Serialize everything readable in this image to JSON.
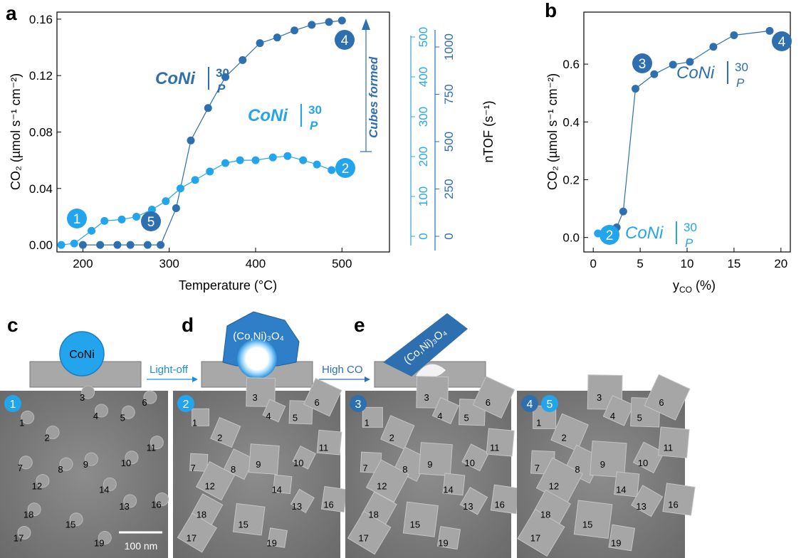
{
  "panels": {
    "a": "a",
    "b": "b",
    "c": "c",
    "d": "d",
    "e": "e"
  },
  "chart_a": {
    "xlabel": "Temperature (°C)",
    "ylabel": "CO₂ (µmol s⁻¹ cm⁻²)",
    "y2label": "nTOF (s⁻¹)",
    "xticks": [
      "200",
      "300",
      "400",
      "500"
    ],
    "yticks": [
      "0.00",
      "0.04",
      "0.08",
      "0.12",
      "0.16"
    ],
    "y2ticks_light": [
      "0",
      "100",
      "200",
      "300",
      "400",
      "500"
    ],
    "y2ticks_dark": [
      "0",
      "250",
      "500",
      "750",
      "1000"
    ],
    "annotation": "Cubes formed",
    "label_dark": "CoNi",
    "label_light": "CoNi",
    "sup": "30",
    "sub": "P",
    "markers": [
      "1",
      "5",
      "2",
      "4"
    ]
  },
  "chart_b": {
    "xlabel": "y",
    "xlabel_sub": "CO",
    "xlabel_unit": " (%)",
    "ylabel": "CO₂ (µmol s⁻¹ cm⁻²)",
    "xticks": [
      "0",
      "5",
      "10",
      "15",
      "20"
    ],
    "yticks": [
      "0.0",
      "0.2",
      "0.4",
      "0.6"
    ],
    "label": "CoNi",
    "sup": "30",
    "sub": "P",
    "markers": [
      "3",
      "4",
      "2"
    ]
  },
  "chart_data": [
    {
      "type": "line",
      "series": [
        {
          "x": [
            200,
            220,
            240,
            255,
            275,
            290,
            308,
            325,
            345,
            365,
            385,
            405,
            425,
            445,
            465,
            485,
            500
          ],
          "y": [
            0,
            0,
            0,
            0,
            0,
            0,
            0.026,
            0.074,
            0.097,
            0.119,
            0.131,
            0.143,
            0.147,
            0.152,
            0.156,
            0.158,
            0.159
          ]
        },
        {
          "x": [
            175,
            190,
            210,
            225,
            245,
            262,
            280,
            296,
            313,
            330,
            347,
            365,
            382,
            400,
            420,
            437,
            455,
            471,
            488
          ],
          "y": [
            0,
            0.001,
            0.01,
            0.017,
            0.018,
            0.02,
            0.025,
            0.031,
            0.04,
            0.046,
            0.052,
            0.058,
            0.06,
            0.06,
            0.062,
            0.063,
            0.06,
            0.057,
            0.053
          ]
        }
      ],
      "xlim": [
        170,
        555
      ],
      "ylim": [
        -0.005,
        0.165
      ]
    },
    {
      "type": "line",
      "series": [
        {
          "x": [
            0.5,
            1.2,
            2.5,
            3.2,
            4.5,
            6.5,
            8.5,
            10.3,
            12.8,
            15,
            18.8
          ],
          "y": [
            0.014,
            0.015,
            0.035,
            0.09,
            0.515,
            0.565,
            0.598,
            0.608,
            0.66,
            0.7,
            0.715
          ]
        }
      ],
      "xlim": [
        -1,
        21
      ],
      "ylim": [
        -0.05,
        0.78
      ]
    }
  ],
  "diagram": {
    "c_particle": "CoNi",
    "d_oxide": "(Co,Ni)₃O₄",
    "e_oxide": "(Co,Ni)₃O₄",
    "arrow1": "Light-off",
    "arrow2": "High CO"
  },
  "micrographs": [
    {
      "badges": [
        "1"
      ],
      "scalebar": "100 nm"
    },
    {
      "badges": [
        "2"
      ]
    },
    {
      "badges": [
        "3"
      ]
    },
    {
      "badges": [
        "4",
        "5"
      ]
    }
  ],
  "particle_numbers": [
    "1",
    "2",
    "3",
    "4",
    "5",
    "6",
    "7",
    "8",
    "9",
    "10",
    "11",
    "12",
    "13",
    "14",
    "15",
    "16",
    "17",
    "18",
    "19"
  ],
  "colors": {
    "light": "#22a5ec",
    "dark": "#2e6faf",
    "substrate": "#a8a8a8"
  }
}
